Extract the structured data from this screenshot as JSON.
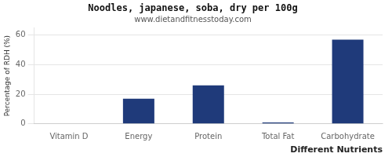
{
  "chart_data": {
    "type": "bar",
    "title": "Noodles, japanese, soba, dry per 100g",
    "subtitle": "www.dietandfitnesstoday.com",
    "xlabel": "Different Nutrients",
    "ylabel": "Percentage of RDH (%)",
    "categories": [
      "Vitamin D",
      "Energy",
      "Protein",
      "Total Fat",
      "Carbohydrate"
    ],
    "values": [
      0,
      17,
      26,
      1,
      57
    ],
    "color": "#1f3a7a",
    "ylim": [
      0,
      65
    ],
    "yticks": [
      0,
      20,
      40,
      60
    ],
    "grid": true
  }
}
